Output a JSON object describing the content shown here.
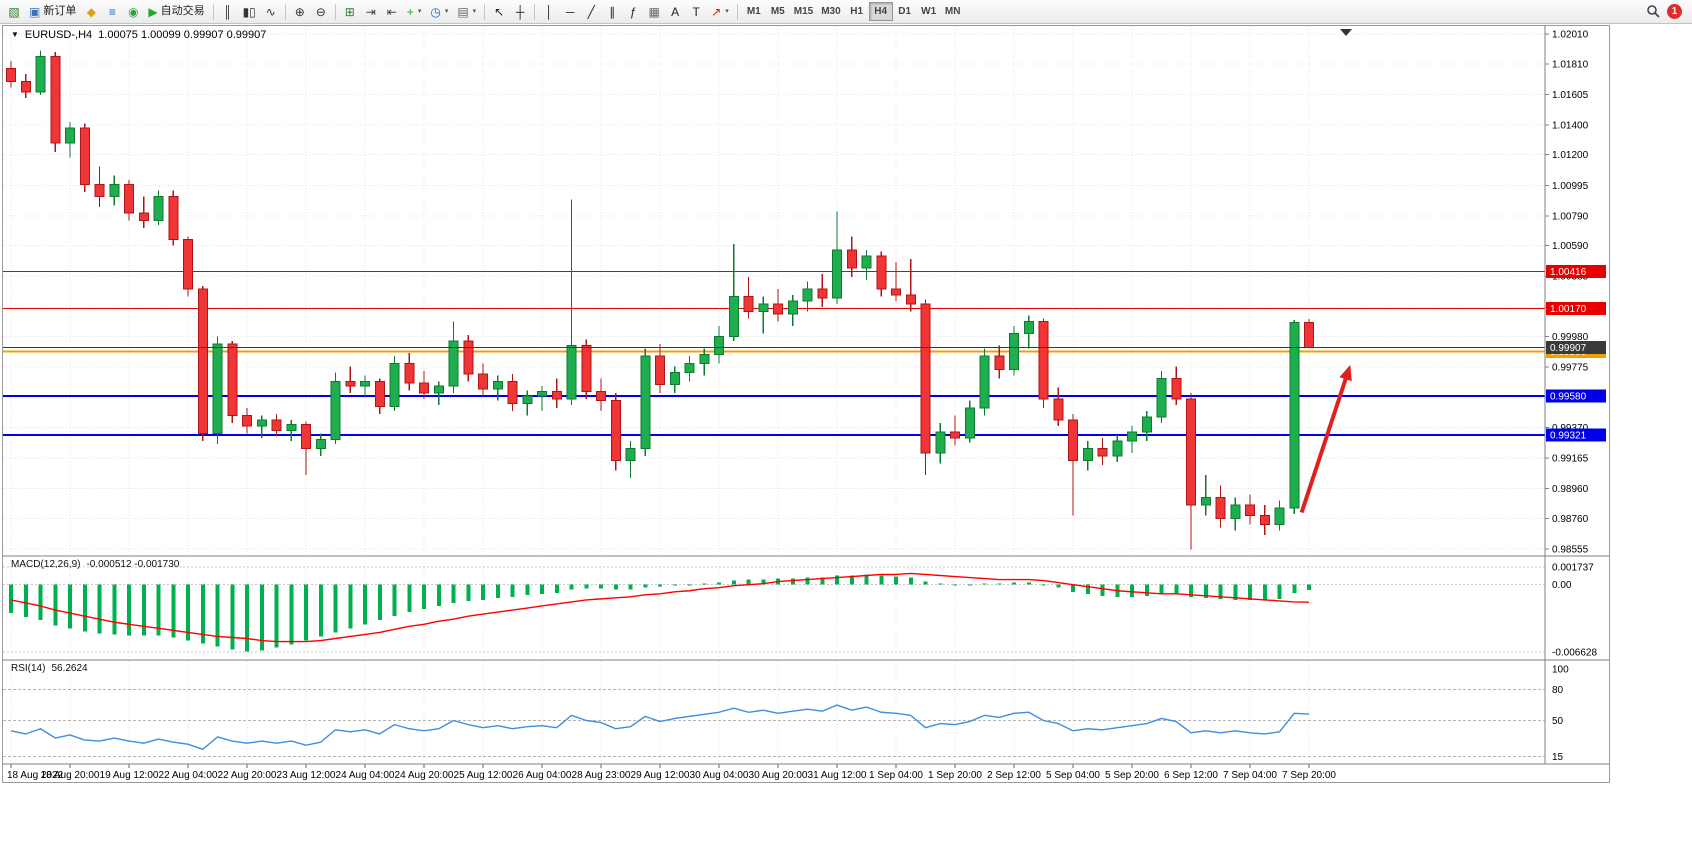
{
  "toolbar": {
    "items": [
      {
        "name": "new-chart-button",
        "glyph": "▧",
        "color": "#2e7d32"
      },
      {
        "name": "new-order-button",
        "glyph": "▣",
        "color": "#3b6fb5",
        "label": "新订单"
      },
      {
        "name": "metaeditor-button",
        "glyph": "◆",
        "color": "#e0a010"
      },
      {
        "name": "market-watch-button",
        "glyph": "≡",
        "color": "#1565c0"
      },
      {
        "name": "community-button",
        "glyph": "◉",
        "color": "#2e9e3f"
      },
      {
        "name": "autotrading-button",
        "glyph": "▶",
        "color": "#1faa30",
        "label": "自动交易"
      },
      {
        "sep": true
      },
      {
        "name": "ohlc-bars-button",
        "glyph": "║",
        "color": "#333333"
      },
      {
        "name": "candlesticks-button",
        "glyph": "▮▯",
        "color": "#333333"
      },
      {
        "name": "line-chart-button",
        "glyph": "∿",
        "color": "#333333"
      },
      {
        "sep": true
      },
      {
        "name": "zoom-in-button",
        "glyph": "⊕",
        "color": "#333333"
      },
      {
        "name": "zoom-out-button",
        "glyph": "⊖",
        "color": "#333333"
      },
      {
        "sep": true
      },
      {
        "name": "tile-windows-button",
        "glyph": "⊞",
        "color": "#2e7d32"
      },
      {
        "name": "auto-scroll-button",
        "glyph": "⇥",
        "color": "#444444"
      },
      {
        "name": "chart-shift-button",
        "glyph": "⇤",
        "color": "#444444"
      },
      {
        "name": "indicators-button",
        "glyph": "+",
        "color": "#1faa30",
        "caret": true
      },
      {
        "name": "periods-button",
        "glyph": "◷",
        "color": "#1565c0",
        "caret": true
      },
      {
        "name": "templates-button",
        "glyph": "▤",
        "color": "#666666",
        "caret": true
      },
      {
        "sep": true
      },
      {
        "name": "cursor-button",
        "glyph": "↖",
        "color": "#222222"
      },
      {
        "name": "crosshair-button",
        "glyph": "┼",
        "color": "#222222"
      },
      {
        "sep": true
      },
      {
        "name": "vertical-line-button",
        "glyph": "│",
        "color": "#222222"
      },
      {
        "name": "horizontal-line-button",
        "glyph": "─",
        "color": "#222222"
      },
      {
        "name": "trendline-button",
        "glyph": "╱",
        "color": "#222222"
      },
      {
        "name": "channel-button",
        "glyph": "∥",
        "color": "#222222"
      },
      {
        "name": "fibonacci-button",
        "glyph": "ƒ",
        "color": "#222222"
      },
      {
        "name": "shapes-button",
        "glyph": "▦",
        "color": "#666666"
      },
      {
        "name": "text-button",
        "glyph": "A",
        "color": "#222222"
      },
      {
        "name": "label-button",
        "glyph": "T",
        "color": "#222222"
      },
      {
        "name": "arrows-button",
        "glyph": "↗",
        "color": "#c02020",
        "caret": true
      },
      {
        "sep": true
      }
    ],
    "timeframes": [
      "M1",
      "M5",
      "M15",
      "M30",
      "H1",
      "H4",
      "D1",
      "W1",
      "MN"
    ],
    "active_timeframe": "H4",
    "notification_count": "1"
  },
  "chart": {
    "symbol": "EURUSD-,H4",
    "ohlc": "1.00075 1.00099 0.99907 0.99907"
  },
  "panels": {
    "macd_name": "MACD(12,26,9)",
    "macd_values": "-0.000512 -0.001730",
    "rsi_name": "RSI(14)",
    "rsi_value": "56.2624"
  },
  "chart_data": {
    "type": "candlestick",
    "symbol": "EURUSD-",
    "timeframe": "H4",
    "ohlc_display": {
      "open": "1.00075",
      "high": "1.00099",
      "low": "0.99907",
      "close": "0.99907"
    },
    "price_axis": {
      "max": 1.0201,
      "min": 0.98555,
      "ticks": [
        "1.02010",
        "1.01810",
        "1.01605",
        "1.01400",
        "1.01200",
        "1.00995",
        "1.00790",
        "1.00590",
        "1.00385",
        "1.00180",
        "0.99980",
        "0.99775",
        "0.99570",
        "0.99370",
        "0.99165",
        "0.98960",
        "0.98760",
        "0.98555"
      ]
    },
    "time_labels": [
      "18 Aug 2022",
      "18 Aug 20:00",
      "19 Aug 12:00",
      "22 Aug 04:00",
      "22 Aug 20:00",
      "23 Aug 12:00",
      "24 Aug 04:00",
      "24 Aug 20:00",
      "25 Aug 12:00",
      "26 Aug 04:00",
      "28 Aug 23:00",
      "29 Aug 12:00",
      "30 Aug 04:00",
      "30 Aug 20:00",
      "31 Aug 12:00",
      "1 Sep 04:00",
      "1 Sep 20:00",
      "2 Sep 12:00",
      "5 Sep 04:00",
      "5 Sep 20:00",
      "6 Sep 12:00",
      "7 Sep 04:00",
      "7 Sep 20:00"
    ],
    "candles_per_label": 4,
    "candles": [
      [
        1.0178,
        1.0183,
        1.0165,
        1.0169
      ],
      [
        1.0169,
        1.0174,
        1.0158,
        1.0162
      ],
      [
        1.0162,
        1.019,
        1.016,
        1.0186
      ],
      [
        1.0186,
        1.0189,
        1.0122,
        1.0128
      ],
      [
        1.0128,
        1.0142,
        1.0118,
        1.0138
      ],
      [
        1.0138,
        1.0141,
        1.0095,
        1.01
      ],
      [
        1.01,
        1.0112,
        1.0085,
        1.0092
      ],
      [
        1.0092,
        1.0106,
        1.0086,
        1.01
      ],
      [
        1.01,
        1.0103,
        1.0076,
        1.0081
      ],
      [
        1.0081,
        1.0092,
        1.0071,
        1.0076
      ],
      [
        1.0076,
        1.0096,
        1.0073,
        1.0092
      ],
      [
        1.0092,
        1.0096,
        1.0059,
        1.0063
      ],
      [
        1.0063,
        1.0065,
        1.0025,
        1.003
      ],
      [
        1.003,
        1.0032,
        0.9928,
        0.9933
      ],
      [
        0.9933,
        0.9998,
        0.9926,
        0.9993
      ],
      [
        0.9993,
        0.9995,
        0.994,
        0.9945
      ],
      [
        0.9945,
        0.995,
        0.9933,
        0.9938
      ],
      [
        0.9938,
        0.9945,
        0.993,
        0.9942
      ],
      [
        0.9942,
        0.9946,
        0.9931,
        0.9935
      ],
      [
        0.9935,
        0.9942,
        0.9928,
        0.9939
      ],
      [
        0.9939,
        0.9941,
        0.9905,
        0.9923
      ],
      [
        0.9923,
        0.9933,
        0.9918,
        0.9929
      ],
      [
        0.9929,
        0.9974,
        0.9926,
        0.9968
      ],
      [
        0.9968,
        0.9978,
        0.996,
        0.9965
      ],
      [
        0.9965,
        0.9972,
        0.9958,
        0.9968
      ],
      [
        0.9968,
        0.997,
        0.9946,
        0.9951
      ],
      [
        0.9951,
        0.9985,
        0.9948,
        0.998
      ],
      [
        0.998,
        0.9987,
        0.9962,
        0.9967
      ],
      [
        0.9967,
        0.9975,
        0.9956,
        0.996
      ],
      [
        0.996,
        0.9968,
        0.9952,
        0.9965
      ],
      [
        0.9965,
        1.0008,
        0.996,
        0.9995
      ],
      [
        0.9995,
        0.9999,
        0.9968,
        0.9973
      ],
      [
        0.9973,
        0.998,
        0.9958,
        0.9963
      ],
      [
        0.9963,
        0.9972,
        0.9955,
        0.9968
      ],
      [
        0.9968,
        0.9973,
        0.9948,
        0.9953
      ],
      [
        0.9953,
        0.9962,
        0.9945,
        0.9958
      ],
      [
        0.9958,
        0.9965,
        0.9948,
        0.9961
      ],
      [
        0.9961,
        0.997,
        0.995,
        0.9956
      ],
      [
        0.9956,
        1.009,
        0.9952,
        0.9992
      ],
      [
        0.9992,
        0.9996,
        0.9956,
        0.9961
      ],
      [
        0.9961,
        0.997,
        0.9948,
        0.9955
      ],
      [
        0.9955,
        0.996,
        0.9908,
        0.9915
      ],
      [
        0.9915,
        0.9928,
        0.9903,
        0.9923
      ],
      [
        0.9923,
        0.999,
        0.9918,
        0.9985
      ],
      [
        0.9985,
        0.9993,
        0.996,
        0.9966
      ],
      [
        0.9966,
        0.9978,
        0.996,
        0.9974
      ],
      [
        0.9974,
        0.9985,
        0.9968,
        0.998
      ],
      [
        0.998,
        0.999,
        0.9972,
        0.9986
      ],
      [
        0.9986,
        1.0005,
        0.998,
        0.9998
      ],
      [
        0.9998,
        1.006,
        0.9995,
        1.0025
      ],
      [
        1.0025,
        1.0038,
        1.001,
        1.0015
      ],
      [
        1.0015,
        1.0025,
        1.0,
        1.002
      ],
      [
        1.002,
        1.003,
        1.0008,
        1.0013
      ],
      [
        1.0013,
        1.0026,
        1.0005,
        1.0022
      ],
      [
        1.0022,
        1.0035,
        1.0015,
        1.003
      ],
      [
        1.003,
        1.004,
        1.0018,
        1.0024
      ],
      [
        1.0024,
        1.0082,
        1.002,
        1.0056
      ],
      [
        1.0056,
        1.0065,
        1.0038,
        1.0044
      ],
      [
        1.0044,
        1.0056,
        1.0036,
        1.0052
      ],
      [
        1.0052,
        1.0055,
        1.0025,
        1.003
      ],
      [
        1.003,
        1.0048,
        1.0022,
        1.0026
      ],
      [
        1.0026,
        1.005,
        1.0015,
        1.002
      ],
      [
        1.002,
        1.0023,
        0.9905,
        0.992
      ],
      [
        0.992,
        0.994,
        0.9913,
        0.9934
      ],
      [
        0.9934,
        0.9945,
        0.9925,
        0.993
      ],
      [
        0.993,
        0.9955,
        0.9927,
        0.995
      ],
      [
        0.995,
        0.999,
        0.9945,
        0.9985
      ],
      [
        0.9985,
        0.9992,
        0.997,
        0.9976
      ],
      [
        0.9976,
        1.0005,
        0.9972,
        1.0
      ],
      [
        1.0,
        1.0012,
        0.999,
        1.0008
      ],
      [
        1.0008,
        1.001,
        0.995,
        0.9956
      ],
      [
        0.9956,
        0.9964,
        0.9938,
        0.9942
      ],
      [
        0.9942,
        0.9946,
        0.9878,
        0.9915
      ],
      [
        0.9915,
        0.9928,
        0.9908,
        0.9923
      ],
      [
        0.9923,
        0.993,
        0.9912,
        0.9918
      ],
      [
        0.9918,
        0.9932,
        0.9914,
        0.9928
      ],
      [
        0.9928,
        0.9938,
        0.992,
        0.9934
      ],
      [
        0.9934,
        0.9948,
        0.9928,
        0.9944
      ],
      [
        0.9944,
        0.9975,
        0.994,
        0.997
      ],
      [
        0.997,
        0.9978,
        0.9952,
        0.9956
      ],
      [
        0.9956,
        0.996,
        0.9855,
        0.9885
      ],
      [
        0.9885,
        0.9905,
        0.9878,
        0.989
      ],
      [
        0.989,
        0.9898,
        0.987,
        0.9876
      ],
      [
        0.9876,
        0.989,
        0.9868,
        0.9885
      ],
      [
        0.9885,
        0.9892,
        0.9872,
        0.9878
      ],
      [
        0.9878,
        0.9885,
        0.9865,
        0.9872
      ],
      [
        0.9872,
        0.9888,
        0.9868,
        0.9883
      ],
      [
        0.9883,
        1.0009,
        0.9879,
        1.00075
      ],
      [
        1.00075,
        1.00099,
        0.99907,
        0.99907
      ]
    ],
    "levels": [
      {
        "price": 1.00416,
        "label": "1.00416",
        "color": "#e80000",
        "width": 1
      },
      {
        "price": 1.0017,
        "label": "1.00170",
        "color": "#e80000",
        "width": 1
      },
      {
        "price": 0.9988,
        "label": "0.99880",
        "color": "#f0a000",
        "width": 2
      },
      {
        "price": 0.9958,
        "label": "0.99580",
        "color": "#0000e8",
        "width": 2
      },
      {
        "price": 0.99321,
        "label": "0.99321",
        "color": "#0000e8",
        "width": 2
      }
    ],
    "current_price": {
      "price": 0.99907,
      "label": "0.99907",
      "color": "#3a3a3a"
    },
    "arrow": {
      "from_candle": 87.5,
      "from_price": 0.988,
      "to_candle": 90.8,
      "to_price": 0.9979,
      "color": "#e02020",
      "width": 4
    },
    "colors": {
      "up": "#1fae4d",
      "up_border": "#0e7a30",
      "down": "#ef3535",
      "down_border": "#b01515",
      "grid": "#e4e4e4"
    },
    "indicators": [
      {
        "name": "MACD",
        "params": "(12,26,9)",
        "values_display": "-0.000512 -0.001730",
        "scale_labels": [
          "0.001737",
          "0.00",
          "-0.006628"
        ],
        "max": 0.001737,
        "min": -0.006628,
        "colors": {
          "histogram": "#00b050",
          "signal": "#ff0000"
        },
        "histogram": [
          -0.0028,
          -0.0032,
          -0.0035,
          -0.004,
          -0.0043,
          -0.0046,
          -0.0048,
          -0.0049,
          -0.005,
          -0.005,
          -0.005,
          -0.0052,
          -0.0055,
          -0.0058,
          -0.0061,
          -0.0064,
          -0.0066,
          -0.0065,
          -0.0062,
          -0.0059,
          -0.0055,
          -0.0051,
          -0.0047,
          -0.0043,
          -0.0039,
          -0.0035,
          -0.0031,
          -0.0027,
          -0.0024,
          -0.0021,
          -0.0018,
          -0.0016,
          -0.0015,
          -0.0013,
          -0.0012,
          -0.001,
          -0.0009,
          -0.0008,
          -0.0005,
          -0.0004,
          -0.0004,
          -0.0005,
          -0.0005,
          -0.0003,
          -0.0002,
          -0.0001,
          0.0,
          0.0001,
          0.0002,
          0.0004,
          0.0005,
          0.0005,
          0.0006,
          0.0006,
          0.0007,
          0.0007,
          0.0009,
          0.0009,
          0.001,
          0.0009,
          0.0008,
          0.0007,
          0.0003,
          0.0001,
          0.0,
          0.0,
          0.0001,
          0.0001,
          0.0002,
          0.0002,
          0.0,
          -0.0003,
          -0.0007,
          -0.0009,
          -0.0011,
          -0.0012,
          -0.0012,
          -0.0011,
          -0.0009,
          -0.0009,
          -0.0012,
          -0.0013,
          -0.0014,
          -0.0015,
          -0.0015,
          -0.0015,
          -0.0014,
          -0.0008,
          -0.000512
        ],
        "signal": [
          -0.0015,
          -0.0018,
          -0.0021,
          -0.0025,
          -0.0028,
          -0.0031,
          -0.0034,
          -0.0037,
          -0.0039,
          -0.0041,
          -0.0043,
          -0.0045,
          -0.0047,
          -0.0049,
          -0.0051,
          -0.0052,
          -0.0053,
          -0.0055,
          -0.0056,
          -0.0056,
          -0.0056,
          -0.0055,
          -0.0053,
          -0.0051,
          -0.0049,
          -0.0047,
          -0.0044,
          -0.0041,
          -0.0039,
          -0.0036,
          -0.0034,
          -0.0031,
          -0.0029,
          -0.0027,
          -0.0025,
          -0.0023,
          -0.0021,
          -0.0019,
          -0.0017,
          -0.0015,
          -0.0014,
          -0.0013,
          -0.0012,
          -0.001,
          -0.0009,
          -0.0007,
          -0.0006,
          -0.0004,
          -0.0003,
          -0.0001,
          0.0,
          0.0001,
          0.0003,
          0.0004,
          0.0005,
          0.0006,
          0.0007,
          0.0008,
          0.0009,
          0.001,
          0.001,
          0.0011,
          0.001,
          0.0009,
          0.0008,
          0.0007,
          0.0006,
          0.0005,
          0.0005,
          0.0005,
          0.0004,
          0.0002,
          0.0,
          -0.0002,
          -0.0004,
          -0.0006,
          -0.0007,
          -0.0008,
          -0.0009,
          -0.0009,
          -0.001,
          -0.0011,
          -0.0012,
          -0.0013,
          -0.0014,
          -0.0015,
          -0.0016,
          -0.0017,
          -0.00173
        ]
      },
      {
        "name": "RSI",
        "params": "(14)",
        "value_display": "56.2624",
        "scale_labels": [
          "100",
          "80",
          "50",
          "15"
        ],
        "levels": [
          80,
          50,
          15
        ],
        "color": "#3d8fe0",
        "values": [
          40,
          37,
          42,
          33,
          36,
          31,
          30,
          33,
          30,
          28,
          32,
          29,
          27,
          22,
          34,
          30,
          28,
          30,
          28,
          30,
          26,
          29,
          41,
          39,
          41,
          37,
          46,
          42,
          40,
          42,
          50,
          46,
          43,
          45,
          42,
          44,
          45,
          43,
          55,
          50,
          48,
          42,
          44,
          54,
          49,
          52,
          54,
          56,
          58,
          62,
          58,
          60,
          57,
          59,
          61,
          59,
          65,
          60,
          63,
          58,
          57,
          55,
          43,
          47,
          46,
          49,
          55,
          53,
          57,
          58,
          50,
          47,
          40,
          42,
          41,
          43,
          45,
          47,
          52,
          49,
          38,
          40,
          38,
          40,
          38,
          37,
          39,
          57,
          56.2624
        ]
      }
    ]
  }
}
